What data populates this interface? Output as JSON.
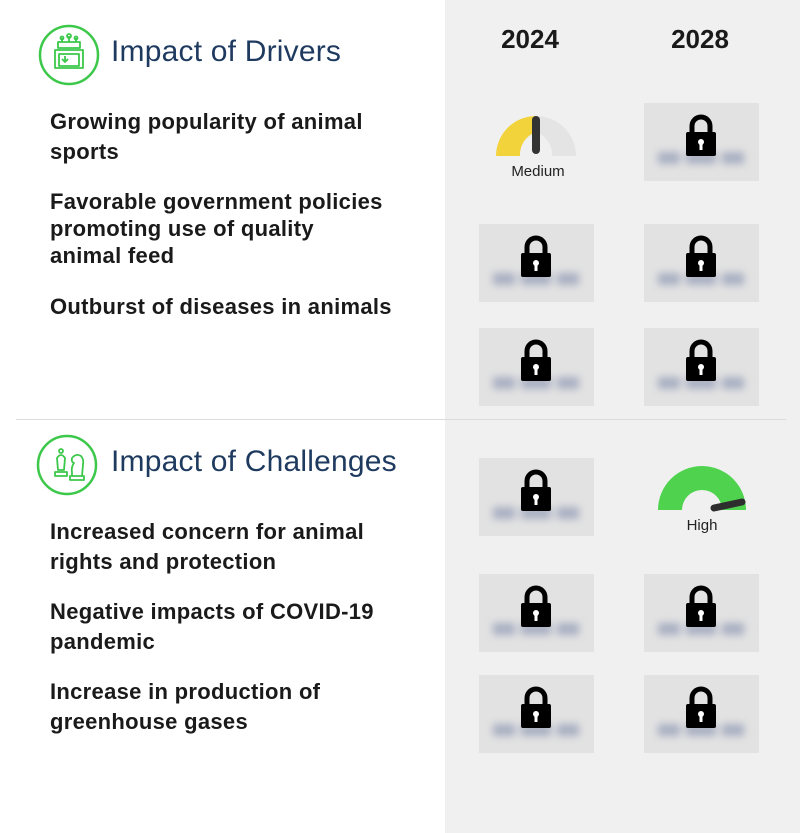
{
  "years": [
    "2024",
    "2028"
  ],
  "drivers": {
    "title": "Impact of Drivers",
    "icon": "factory-icon",
    "items": [
      "Growing popularity of animal sports",
      "Favorable government policies promoting use of quality animal feed",
      "Outburst of diseases in animals"
    ],
    "ratings": [
      {
        "y2024": "Medium",
        "y2028": "locked"
      },
      {
        "y2024": "locked",
        "y2028": "locked"
      },
      {
        "y2024": "locked",
        "y2028": "locked"
      }
    ]
  },
  "challenges": {
    "title": "Impact of Challenges",
    "icon": "chess-icon",
    "items": [
      "Increased concern for animal rights and protection",
      "Negative impacts of COVID-19 pandemic",
      "Increase in production of greenhouse gases"
    ],
    "ratings": [
      {
        "y2024": "locked",
        "y2028": "High"
      },
      {
        "y2024": "locked",
        "y2028": "locked"
      },
      {
        "y2024": "locked",
        "y2028": "locked"
      }
    ]
  },
  "gauges": {
    "medium_label": "Medium",
    "high_label": "High"
  },
  "colors": {
    "title": "#1e3a5f",
    "icon_green": "#3cc84a",
    "medium_yellow": "#f2d33c",
    "high_green": "#4fd34f",
    "lock_bg": "#e2e2e2",
    "panel_bg": "#f0f0f0"
  }
}
